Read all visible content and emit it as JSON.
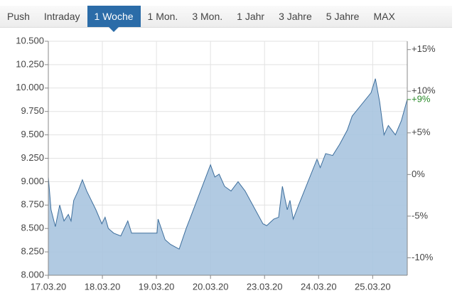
{
  "tabs": {
    "items": [
      "Push",
      "Intraday",
      "1 Woche",
      "1 Mon.",
      "3 Mon.",
      "1 Jahr",
      "3 Jahre",
      "5 Jahre",
      "MAX"
    ],
    "active": 2
  },
  "chart_data": {
    "type": "area",
    "color": "#3d6e9c",
    "fill": "#a9c4df",
    "grid": true,
    "x": [
      0,
      0.05,
      0.13,
      0.21,
      0.29,
      0.37,
      0.42,
      0.47,
      0.55,
      0.63,
      0.71,
      0.88,
      0.99,
      1.05,
      1.11,
      1.21,
      1.34,
      1.47,
      1.54,
      1.64,
      2.01,
      2.03,
      2.16,
      2.26,
      2.42,
      2.55,
      2.63,
      3.0,
      3.08,
      3.16,
      3.26,
      3.38,
      3.51,
      3.64,
      3.97,
      4.04,
      4.17,
      4.26,
      4.33,
      4.42,
      4.47,
      4.53,
      4.63,
      4.97,
      5.03,
      5.13,
      5.26,
      5.39,
      5.53,
      5.62,
      5.97,
      6.05,
      6.13,
      6.21,
      6.29,
      6.42,
      6.53,
      6.64
    ],
    "values": [
      9050,
      8700,
      8520,
      8750,
      8580,
      8650,
      8580,
      8800,
      8900,
      9020,
      8900,
      8700,
      8550,
      8620,
      8500,
      8450,
      8420,
      8580,
      8450,
      8450,
      8450,
      8600,
      8380,
      8330,
      8280,
      8500,
      8620,
      9180,
      9050,
      9080,
      8950,
      8900,
      9000,
      8900,
      8550,
      8530,
      8600,
      8620,
      8950,
      8700,
      8800,
      8600,
      8750,
      9240,
      9150,
      9300,
      9280,
      9400,
      9550,
      9700,
      9950,
      10100,
      9850,
      9500,
      9600,
      9500,
      9650,
      9880
    ],
    "xlim": [
      0,
      6.64
    ],
    "xticks": [
      {
        "value": 0,
        "label": "17.03.20"
      },
      {
        "value": 1,
        "label": "18.03.20"
      },
      {
        "value": 2,
        "label": "19.03.20"
      },
      {
        "value": 3,
        "label": "20.03.20"
      },
      {
        "value": 4,
        "label": "23.03.20"
      },
      {
        "value": 5,
        "label": "24.03.20"
      },
      {
        "value": 6,
        "label": "25.03.20"
      }
    ],
    "ylim": [
      8000,
      10500
    ],
    "yticks": [
      {
        "value": 8000,
        "label": "8.000"
      },
      {
        "value": 8250,
        "label": "8.250"
      },
      {
        "value": 8500,
        "label": "8.500"
      },
      {
        "value": 8750,
        "label": "8.750"
      },
      {
        "value": 9000,
        "label": "9.000"
      },
      {
        "value": 9250,
        "label": "9.250"
      },
      {
        "value": 9500,
        "label": "9.500"
      },
      {
        "value": 9750,
        "label": "9.750"
      },
      {
        "value": 10000,
        "label": "10.000"
      },
      {
        "value": 10250,
        "label": "10.250"
      },
      {
        "value": 10500,
        "label": "10.500"
      }
    ],
    "y2lim": [
      -12.1,
      16
    ],
    "y2ticks": [
      {
        "value": -10,
        "label": "-10%"
      },
      {
        "value": -5,
        "label": "-5%"
      },
      {
        "value": 0,
        "label": "0%"
      },
      {
        "value": 5,
        "label": "+5%"
      },
      {
        "value": 10,
        "label": "+10%"
      },
      {
        "value": 15,
        "label": "+15%"
      }
    ],
    "current_change": {
      "value": 9,
      "label": "+9%",
      "color": "#2a8a2a"
    }
  }
}
